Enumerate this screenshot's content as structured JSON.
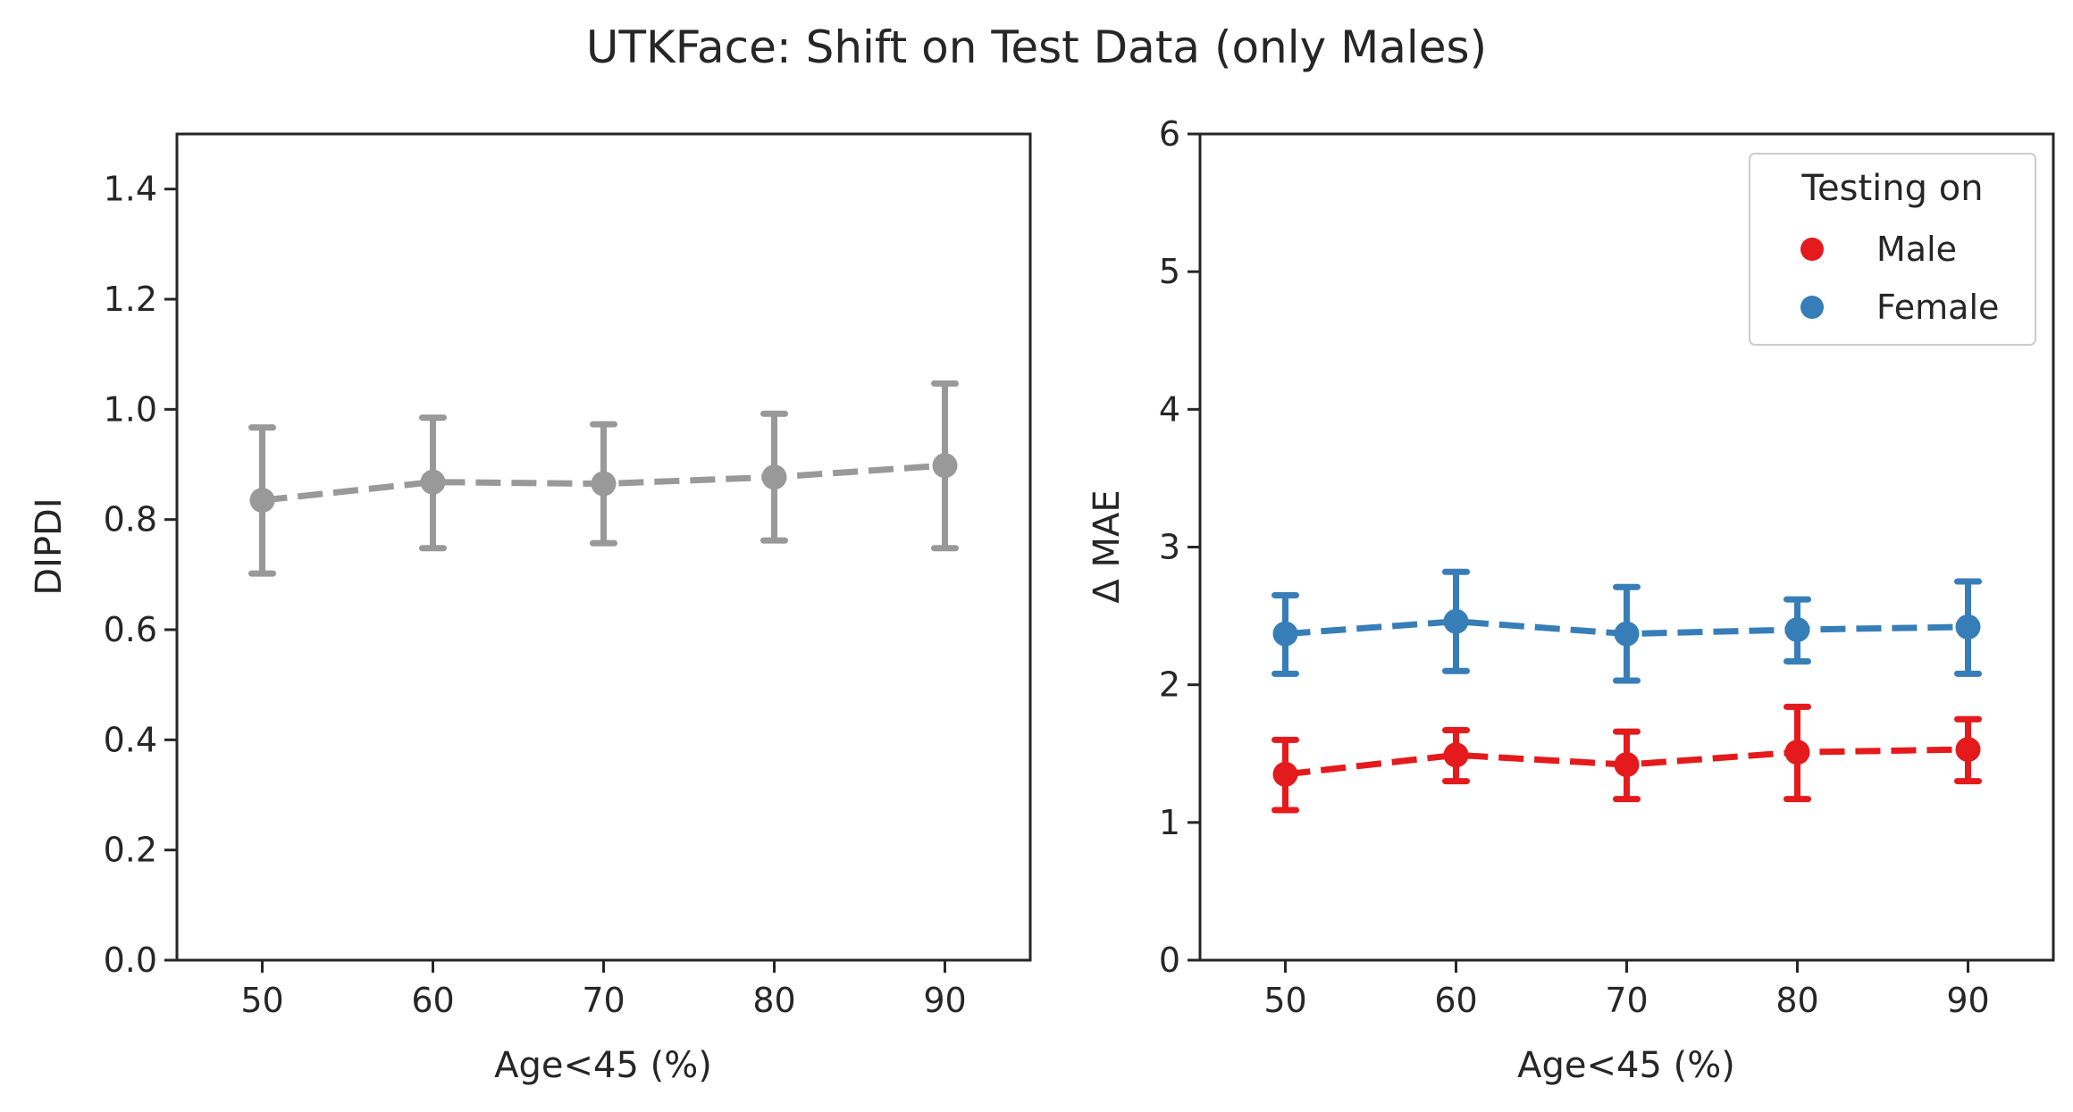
{
  "figure": {
    "title": "UTKFace: Shift on Test Data (only Males)"
  },
  "colors": {
    "gray": "#999999",
    "male": "#e41a1c",
    "female": "#377eb8",
    "axes": "#262626"
  },
  "chart_data": [
    {
      "type": "line",
      "x": [
        50,
        60,
        70,
        80,
        90
      ],
      "xlim": [
        45,
        95
      ],
      "ylim": [
        0,
        1.5
      ],
      "xticks": [
        "50",
        "60",
        "70",
        "80",
        "90"
      ],
      "yticks": [
        "0.0",
        "0.2",
        "0.4",
        "0.6",
        "0.8",
        "1.0",
        "1.2",
        "1.4"
      ],
      "xlabel": "Age<45 (%)",
      "ylabel": "DIPDI",
      "grid": false,
      "series": [
        {
          "color": "#999999",
          "values": [
            0.835,
            0.868,
            0.865,
            0.877,
            0.898
          ],
          "err_low": [
            0.702,
            0.748,
            0.757,
            0.762,
            0.748
          ],
          "err_high": [
            0.967,
            0.985,
            0.973,
            0.992,
            1.047
          ]
        }
      ]
    },
    {
      "type": "line",
      "x": [
        50,
        60,
        70,
        80,
        90
      ],
      "xlim": [
        45,
        95
      ],
      "ylim": [
        0,
        6
      ],
      "xticks": [
        "50",
        "60",
        "70",
        "80",
        "90"
      ],
      "yticks": [
        "0",
        "1",
        "2",
        "3",
        "4",
        "5",
        "6"
      ],
      "xlabel": "Age<45 (%)",
      "ylabel": "Δ MAE",
      "grid": false,
      "legend": {
        "title": "Testing on",
        "placement": "top-right"
      },
      "series": [
        {
          "name": "Male",
          "color": "#e41a1c",
          "values": [
            1.35,
            1.49,
            1.42,
            1.51,
            1.53
          ],
          "err_low": [
            1.09,
            1.3,
            1.17,
            1.17,
            1.3
          ],
          "err_high": [
            1.6,
            1.67,
            1.66,
            1.84,
            1.75
          ]
        },
        {
          "name": "Female",
          "color": "#377eb8",
          "values": [
            2.37,
            2.46,
            2.37,
            2.4,
            2.42
          ],
          "err_low": [
            2.08,
            2.1,
            2.03,
            2.17,
            2.08
          ],
          "err_high": [
            2.65,
            2.82,
            2.71,
            2.62,
            2.75
          ]
        }
      ]
    }
  ]
}
